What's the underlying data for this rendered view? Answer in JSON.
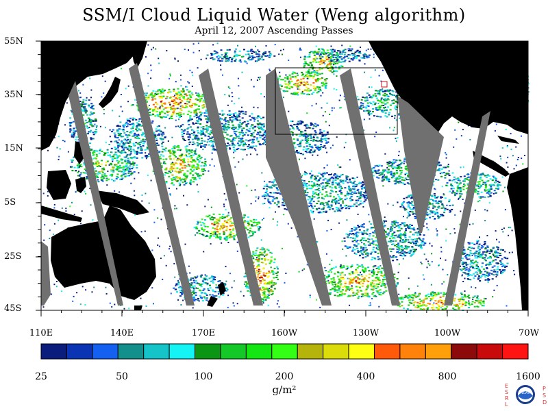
{
  "title": "SSM/I Cloud Liquid Water (Weng algorithm)",
  "subtitle": "April 12, 2007  Ascending Passes",
  "lat_labels": [
    "55N",
    "35N",
    "15N",
    "5S",
    "25S",
    "45S"
  ],
  "lon_labels": [
    "110E",
    "140E",
    "170E",
    "160W",
    "130W",
    "100W",
    "70W"
  ],
  "colorbar": {
    "colors": [
      "#0a1c7c",
      "#0a34b4",
      "#1460f0",
      "#14908c",
      "#14c4c8",
      "#14f4f4",
      "#0a9614",
      "#14c828",
      "#14e614",
      "#32ff14",
      "#b4b40a",
      "#dcdc0a",
      "#ffff14",
      "#ff5a0a",
      "#ff820a",
      "#ffa00a",
      "#8c0a0a",
      "#c80a0a",
      "#ff1414"
    ],
    "labels": [
      "25",
      "50",
      "100",
      "200",
      "400",
      "800",
      "1600"
    ],
    "units": "g/m²"
  },
  "map_colors": {
    "ocean": "#ffffff",
    "land": "#000000",
    "nodata_gap": "#707070",
    "box_outline": "#000000"
  },
  "logo": {
    "left_letters": "ESRL",
    "right_letters": "PSD",
    "center": "NOAA",
    "color": "#d23232"
  }
}
